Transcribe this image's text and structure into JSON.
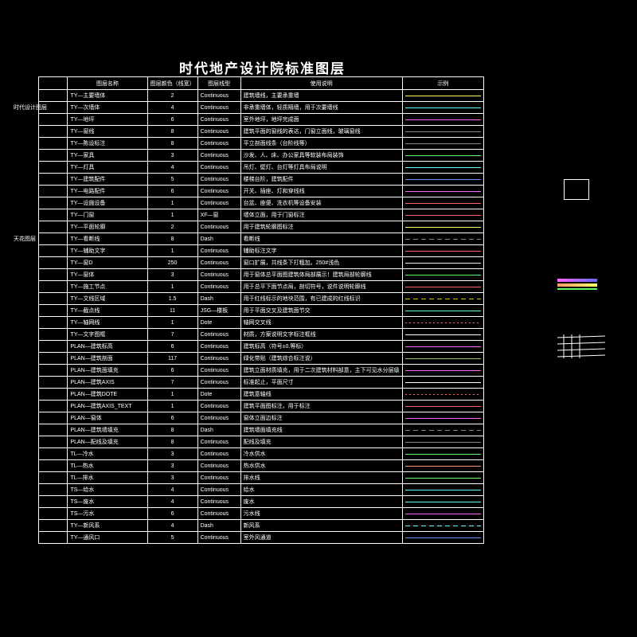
{
  "title": "时代地产设计院标准图层",
  "side_label_1": "时代设计图层",
  "side_label_2": "天花图层",
  "headers": [
    "",
    "图层名称",
    "图层颜色（线宽）",
    "图层线型",
    "使用说明",
    "示例"
  ],
  "rows": [
    {
      "name": "TY—主要墙体",
      "weight": "2",
      "linetype": "Continuous",
      "usage": "建筑墙线，主要承重墙",
      "color": "#ffff66"
    },
    {
      "name": "TY—次墙体",
      "weight": "4",
      "linetype": "Continuous",
      "usage": "非承重墙体，轻质隔墙，用于次要墙线",
      "color": "#66ffff"
    },
    {
      "name": "TY—地坪",
      "weight": "6",
      "linetype": "Continuous",
      "usage": "室外地坪，地坪完成面",
      "color": "#ff66ff"
    },
    {
      "name": "TY—窗线",
      "weight": "8",
      "linetype": "Continuous",
      "usage": "建筑平面的窗线的表达，门窗立面线，玻璃窗线",
      "color": "#888888"
    },
    {
      "name": "TY—陈设标注",
      "weight": "8",
      "linetype": "Continuous",
      "usage": "平立剖面线条（台阶线等）",
      "color": "#888888"
    },
    {
      "name": "TY—家具",
      "weight": "3",
      "linetype": "Continuous",
      "usage": "沙发、人、床、办公家具等软装布局装饰",
      "color": "#66ff66"
    },
    {
      "name": "TY—灯具",
      "weight": "4",
      "linetype": "Continuous",
      "usage": "吊灯、壁灯、台灯等灯具布局说明",
      "color": "#66ffff"
    },
    {
      "name": "TY—建筑配件",
      "weight": "5",
      "linetype": "Continuous",
      "usage": "楼梯台阶，建筑配件",
      "color": "#6699ff"
    },
    {
      "name": "TY—电路配件",
      "weight": "6",
      "linetype": "Continuous",
      "usage": "开关、插座、灯和穿线线",
      "color": "#ff66ff"
    },
    {
      "name": "TY—设施设备",
      "weight": "1",
      "linetype": "Continuous",
      "usage": "台盆、座便、洗衣机等设备安装",
      "color": "#ff6666"
    },
    {
      "name": "TY—门窗",
      "weight": "1",
      "linetype": "XF—窗",
      "usage": "墙体立面，用于门窗标注",
      "color": "#ff6666"
    },
    {
      "name": "TY—平面轮廓",
      "weight": "2",
      "linetype": "Continuous",
      "usage": "用于建筑轮廓图标注",
      "color": "#ffff66"
    },
    {
      "name": "TY—看断线",
      "weight": "8",
      "linetype": "Dash",
      "usage": "看断线",
      "color": "#888888"
    },
    {
      "name": "TY—辅助文字",
      "weight": "1",
      "linetype": "Continuous",
      "usage": "辅助标注文字",
      "color": "#ff6666"
    },
    {
      "name": "TY—窗D",
      "weight": "250",
      "linetype": "Continuous",
      "usage": "窗口扩展，共线条下打粗加。250#浅色",
      "color": "#eeeeee"
    },
    {
      "name": "TY—窗体",
      "weight": "3",
      "linetype": "Continuous",
      "usage": "用于窗体总平面图建筑体局部展示！建筑局部轮廓线",
      "color": "#66ff66"
    },
    {
      "name": "TY—施工节点",
      "weight": "1",
      "linetype": "Continuous",
      "usage": "用于总平下面节点局，剖切符号，说件说明轮廓线",
      "color": "#ff6666"
    },
    {
      "name": "TY—文线区域",
      "weight": "1.5",
      "linetype": "Dash",
      "usage": "用于红线标示的地块范围，有已建成的红线标识",
      "color": "#cccc00"
    },
    {
      "name": "TY—截点线",
      "weight": "11",
      "linetype": "JSG—楼板",
      "usage": "用于平面交叉及建筑面节交",
      "color": "#66ffcc"
    },
    {
      "name": "TY—轴网线",
      "weight": "1",
      "linetype": "Dote",
      "usage": "轴网交叉线",
      "color": "#ff6666"
    },
    {
      "name": "TY—文字图框",
      "weight": "7",
      "linetype": "Continuous",
      "usage": "材质，方案说明文字标注框线",
      "color": "#ffffff"
    },
    {
      "name": "PLAN—建筑标高",
      "weight": "6",
      "linetype": "Continuous",
      "usage": "建筑标高（符号±0.等标）",
      "color": "#ff66ff"
    },
    {
      "name": "PLAN—建筑剖面",
      "weight": "117",
      "linetype": "Continuous",
      "usage": "绿化带贴（建筑综合标注说）",
      "color": "#99cc66"
    },
    {
      "name": "PLAN—建筑面填充",
      "weight": "6",
      "linetype": "Continuous",
      "usage": "建筑立面材质填充，用于二次建筑材料部意，主下可见水分层级",
      "color": "#ff66ff"
    },
    {
      "name": "PLAN—建筑AXIS",
      "weight": "7",
      "linetype": "Continuous",
      "usage": "标准起止，平面尺寸",
      "color": "#ffffff"
    },
    {
      "name": "PLAN—建筑DOTE",
      "weight": "1",
      "linetype": "Dote",
      "usage": "建筑意轴线",
      "color": "#ff6666"
    },
    {
      "name": "PLAN—建筑AXIS_TEXT",
      "weight": "1",
      "linetype": "Continuous",
      "usage": "建筑平面图标注，用于标注",
      "color": "#ff6666"
    },
    {
      "name": "PLAN—窗体",
      "weight": "6",
      "linetype": "Continuous",
      "usage": "窗体立面边标注",
      "color": "#ff66ff"
    },
    {
      "name": "PLAN—建筑墙填充",
      "weight": "8",
      "linetype": "Dash",
      "usage": "建筑墙面填充线",
      "color": "#888888"
    },
    {
      "name": "PLAN—配线及填充",
      "weight": "8",
      "linetype": "Continuous",
      "usage": "配线及填充",
      "color": "#888888"
    },
    {
      "name": "TL—冷水",
      "weight": "3",
      "linetype": "Continuous",
      "usage": "冷水供水",
      "color": "#66ff66"
    },
    {
      "name": "TL—热水",
      "weight": "3",
      "linetype": "Continuous",
      "usage": "热水供水",
      "color": "#ff9966"
    },
    {
      "name": "TL—排水",
      "weight": "3",
      "linetype": "Continuous",
      "usage": "排水线",
      "color": "#66ff66"
    },
    {
      "name": "TS—给水",
      "weight": "4",
      "linetype": "Continuous",
      "usage": "给水",
      "color": "#66ffff"
    },
    {
      "name": "TS—废水",
      "weight": "4",
      "linetype": "Continuous",
      "usage": "废水",
      "color": "#66ffff"
    },
    {
      "name": "TS—污水",
      "weight": "6",
      "linetype": "Continuous",
      "usage": "污水线",
      "color": "#ff66ff"
    },
    {
      "name": "TY—新风系",
      "weight": "4",
      "linetype": "Dash",
      "usage": "新风系",
      "color": "#66ffff"
    },
    {
      "name": "TY—通风口",
      "weight": "5",
      "linetype": "Continuous",
      "usage": "室外风通道",
      "color": "#6699ff"
    }
  ],
  "background_color": "#000000",
  "border_color": "#ffffff"
}
